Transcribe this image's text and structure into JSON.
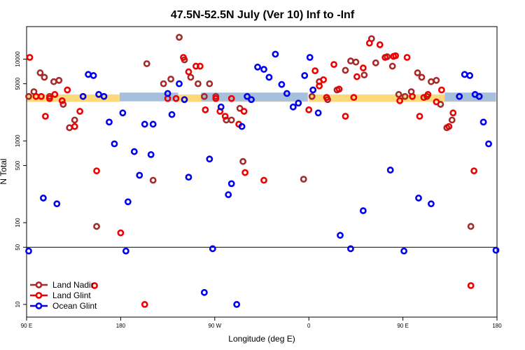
{
  "chart_data": {
    "type": "scatter",
    "title": "47.5N-52.5N July (Ver 10)   Inf to -Inf",
    "xlabel": "Longitude (deg E)",
    "ylabel": "N Total",
    "x_ticks": [
      {
        "value": 90,
        "label": "90 E"
      },
      {
        "value": 180,
        "label": "180"
      },
      {
        "value": 270,
        "label": "90 W"
      },
      {
        "value": 360,
        "label": "0"
      },
      {
        "value": 450,
        "label": "90 E"
      },
      {
        "value": 540,
        "label": "180"
      }
    ],
    "xlim": [
      90,
      540
    ],
    "y_scale": "log",
    "ylim": [
      7,
      25000
    ],
    "y_ticks": [
      {
        "value": 10,
        "label": "10"
      },
      {
        "value": 50,
        "label": "50"
      },
      {
        "value": 100,
        "label": "100"
      },
      {
        "value": 500,
        "label": "500"
      },
      {
        "value": 1000,
        "label": "1000"
      },
      {
        "value": 5000,
        "label": "5000"
      },
      {
        "value": 10000,
        "label": "10000"
      }
    ],
    "reference_line": 50,
    "bands": [
      {
        "color": "#fdd97a",
        "segments": [
          [
            90,
            179
          ],
          [
            235,
            359
          ],
          [
            360,
            539
          ]
        ],
        "y_range": [
          3000,
          3700
        ]
      },
      {
        "color": "#a6bfdc",
        "segments": [
          [
            179,
            235
          ],
          [
            257,
            359
          ],
          [
            490,
            539
          ]
        ],
        "y_range": [
          3050,
          3900
        ]
      }
    ],
    "legend_position": "bottom-left",
    "series": [
      {
        "name": "Land Nadir",
        "color": "#a52a2a",
        "points": [
          [
            92,
            3500
          ],
          [
            97,
            4000
          ],
          [
            103,
            6800
          ],
          [
            107,
            6000
          ],
          [
            112,
            3500
          ],
          [
            116,
            5300
          ],
          [
            121,
            5500
          ],
          [
            125,
            2800
          ],
          [
            131,
            1450
          ],
          [
            136,
            1800
          ],
          [
            157,
            90
          ],
          [
            205,
            8800
          ],
          [
            211,
            330
          ],
          [
            221,
            5000
          ],
          [
            228,
            5700
          ],
          [
            236,
            18500
          ],
          [
            241,
            9800
          ],
          [
            247,
            6000
          ],
          [
            254,
            5000
          ],
          [
            260,
            3500
          ],
          [
            265,
            5000
          ],
          [
            271,
            3500
          ],
          [
            281,
            1800
          ],
          [
            286,
            1800
          ],
          [
            294,
            2500
          ],
          [
            297,
            560
          ],
          [
            355,
            340
          ],
          [
            363,
            3500
          ],
          [
            370,
            5300
          ],
          [
            378,
            3200
          ],
          [
            387,
            4200
          ],
          [
            395,
            7300
          ],
          [
            400,
            9500
          ],
          [
            405,
            9200
          ],
          [
            413,
            6400
          ],
          [
            420,
            17800
          ],
          [
            424,
            9000
          ],
          [
            435,
            10700
          ],
          [
            440,
            8200
          ],
          [
            446,
            3700
          ],
          [
            452,
            3500
          ],
          [
            458,
            4000
          ],
          [
            464,
            6800
          ],
          [
            468,
            6000
          ],
          [
            473,
            3500
          ],
          [
            477,
            5300
          ],
          [
            482,
            5500
          ],
          [
            486,
            2800
          ],
          [
            492,
            1450
          ],
          [
            497,
            1800
          ],
          [
            515,
            90
          ]
        ]
      },
      {
        "name": "Land Glint",
        "color": "#ee0000",
        "points": [
          [
            93,
            10500
          ],
          [
            99,
            3500
          ],
          [
            104,
            3500
          ],
          [
            108,
            2000
          ],
          [
            112,
            3300
          ],
          [
            117,
            3700
          ],
          [
            124,
            3100
          ],
          [
            129,
            4200
          ],
          [
            136,
            1500
          ],
          [
            141,
            2300
          ],
          [
            155,
            17
          ],
          [
            157,
            430
          ],
          [
            180,
            75
          ],
          [
            203,
            10
          ],
          [
            225,
            3300
          ],
          [
            233,
            3300
          ],
          [
            240,
            10500
          ],
          [
            245,
            7000
          ],
          [
            252,
            8200
          ],
          [
            256,
            8200
          ],
          [
            261,
            2400
          ],
          [
            271,
            3300
          ],
          [
            275,
            2300
          ],
          [
            280,
            2000
          ],
          [
            286,
            3300
          ],
          [
            293,
            1600
          ],
          [
            298,
            2300
          ],
          [
            299,
            410
          ],
          [
            317,
            330
          ],
          [
            360,
            2400
          ],
          [
            366,
            7200
          ],
          [
            370,
            4700
          ],
          [
            374,
            5600
          ],
          [
            377,
            3400
          ],
          [
            384,
            8600
          ],
          [
            389,
            4300
          ],
          [
            395,
            2000
          ],
          [
            403,
            3400
          ],
          [
            406,
            6100
          ],
          [
            412,
            7800
          ],
          [
            418,
            15700
          ],
          [
            428,
            15000
          ],
          [
            433,
            10500
          ],
          [
            441,
            10800
          ],
          [
            443,
            11000
          ],
          [
            447,
            3100
          ],
          [
            454,
            10500
          ],
          [
            459,
            3500
          ],
          [
            466,
            2000
          ],
          [
            470,
            3400
          ],
          [
            474,
            3700
          ],
          [
            482,
            3000
          ],
          [
            487,
            4200
          ],
          [
            494,
            1500
          ],
          [
            498,
            2200
          ],
          [
            515,
            17
          ],
          [
            518,
            430
          ]
        ]
      },
      {
        "name": "Ocean Glint",
        "color": "#0000ee",
        "points": [
          [
            92,
            45
          ],
          [
            106,
            200
          ],
          [
            119,
            170
          ],
          [
            144,
            3500
          ],
          [
            149,
            6500
          ],
          [
            154,
            6300
          ],
          [
            159,
            3700
          ],
          [
            164,
            3500
          ],
          [
            169,
            1700
          ],
          [
            174,
            920
          ],
          [
            182,
            2200
          ],
          [
            185,
            45
          ],
          [
            187,
            180
          ],
          [
            193,
            740
          ],
          [
            198,
            380
          ],
          [
            203,
            1600
          ],
          [
            209,
            680
          ],
          [
            211,
            1600
          ],
          [
            225,
            3800
          ],
          [
            229,
            2100
          ],
          [
            236,
            5000
          ],
          [
            241,
            3200
          ],
          [
            245,
            360
          ],
          [
            260,
            14
          ],
          [
            265,
            600
          ],
          [
            268,
            48
          ],
          [
            276,
            2600
          ],
          [
            283,
            220
          ],
          [
            286,
            300
          ],
          [
            291,
            10
          ],
          [
            296,
            1500
          ],
          [
            301,
            3500
          ],
          [
            305,
            3200
          ],
          [
            311,
            8000
          ],
          [
            317,
            7500
          ],
          [
            322,
            6000
          ],
          [
            328,
            11500
          ],
          [
            334,
            4900
          ],
          [
            339,
            3800
          ],
          [
            345,
            2600
          ],
          [
            350,
            2900
          ],
          [
            356,
            6300
          ],
          [
            361,
            10500
          ],
          [
            364,
            4200
          ],
          [
            369,
            2200
          ],
          [
            390,
            70
          ],
          [
            400,
            48
          ],
          [
            412,
            140
          ],
          [
            438,
            440
          ],
          [
            451,
            45
          ],
          [
            465,
            200
          ],
          [
            477,
            170
          ],
          [
            504,
            3500
          ],
          [
            509,
            6500
          ],
          [
            514,
            6300
          ],
          [
            519,
            3700
          ],
          [
            523,
            3500
          ],
          [
            527,
            1700
          ],
          [
            532,
            920
          ],
          [
            539,
            46
          ]
        ]
      }
    ]
  }
}
